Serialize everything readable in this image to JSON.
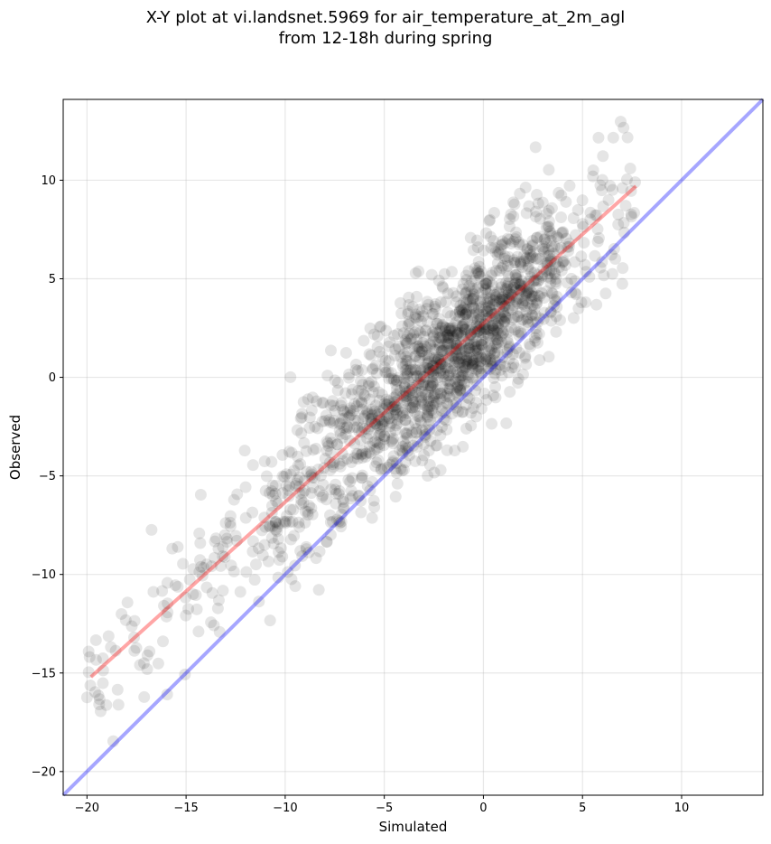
{
  "chart_data": {
    "type": "scatter",
    "title_line1": "X-Y plot at vi.landsnet.5969 for air_temperature_at_2m_agl",
    "title_line2": "from 12-18h during spring",
    "xlabel": "Simulated",
    "ylabel": "Observed",
    "xlim": [
      -21.2,
      14.1
    ],
    "ylim": [
      -21.2,
      14.1
    ],
    "xticks": [
      -20,
      -15,
      -10,
      -5,
      0,
      5,
      10
    ],
    "yticks": [
      -20,
      -15,
      -10,
      -5,
      0,
      5,
      10
    ],
    "xtick_labels": [
      "−20",
      "−15",
      "−10",
      "−5",
      "0",
      "5",
      "10"
    ],
    "ytick_labels": [
      "−20",
      "−15",
      "−10",
      "−5",
      "0",
      "5",
      "10"
    ],
    "grid": true,
    "point_color": "#000000",
    "point_alpha": 0.1,
    "n_points": 1700,
    "point_cloud": {
      "x_range": [
        -20,
        7.7
      ],
      "regression_slope": 0.9,
      "regression_intercept": 2.7,
      "scatter_sd": 2.0
    },
    "fit_line": {
      "x": [
        -19.8,
        7.7
      ],
      "y": [
        -15.2,
        9.7
      ],
      "color": "#ff0000",
      "alpha": 0.35
    },
    "identity_line": {
      "x": [
        -21.2,
        14.1
      ],
      "y": [
        -21.2,
        14.1
      ],
      "color": "#0000ff",
      "alpha": 0.35
    }
  }
}
